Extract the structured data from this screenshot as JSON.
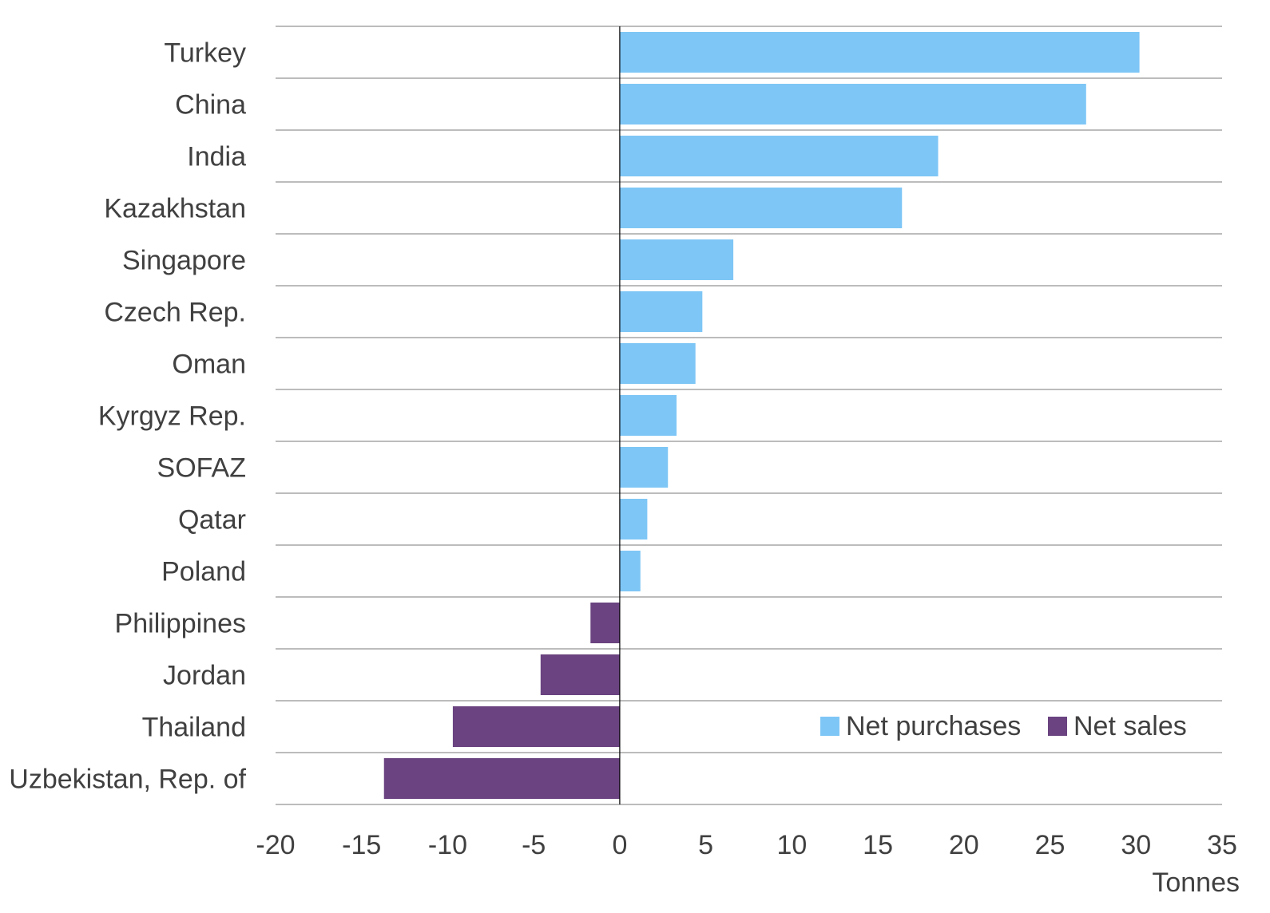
{
  "chart_data": {
    "type": "bar",
    "orientation": "horizontal",
    "categories": [
      "Turkey",
      "China",
      "India",
      "Kazakhstan",
      "Singapore",
      "Czech Rep.",
      "Oman",
      "Kyrgyz Rep.",
      "SOFAZ",
      "Qatar",
      "Poland",
      "Philippines",
      "Jordan",
      "Thailand",
      "Uzbekistan, Rep. of"
    ],
    "values": [
      30.2,
      27.1,
      18.5,
      16.4,
      6.6,
      4.8,
      4.4,
      3.3,
      2.8,
      1.6,
      1.2,
      -1.7,
      -4.6,
      -9.7,
      -13.7
    ],
    "series": [
      {
        "name": "Net purchases",
        "color": "#7ec6f6"
      },
      {
        "name": "Net sales",
        "color": "#6a4380"
      }
    ],
    "xlim": [
      -20,
      35
    ],
    "xticks": [
      -20,
      -15,
      -10,
      -5,
      0,
      5,
      10,
      15,
      20,
      25,
      30,
      35
    ],
    "xunit": "Tonnes",
    "grid": "horizontal",
    "legend_position": "bottom-right"
  }
}
